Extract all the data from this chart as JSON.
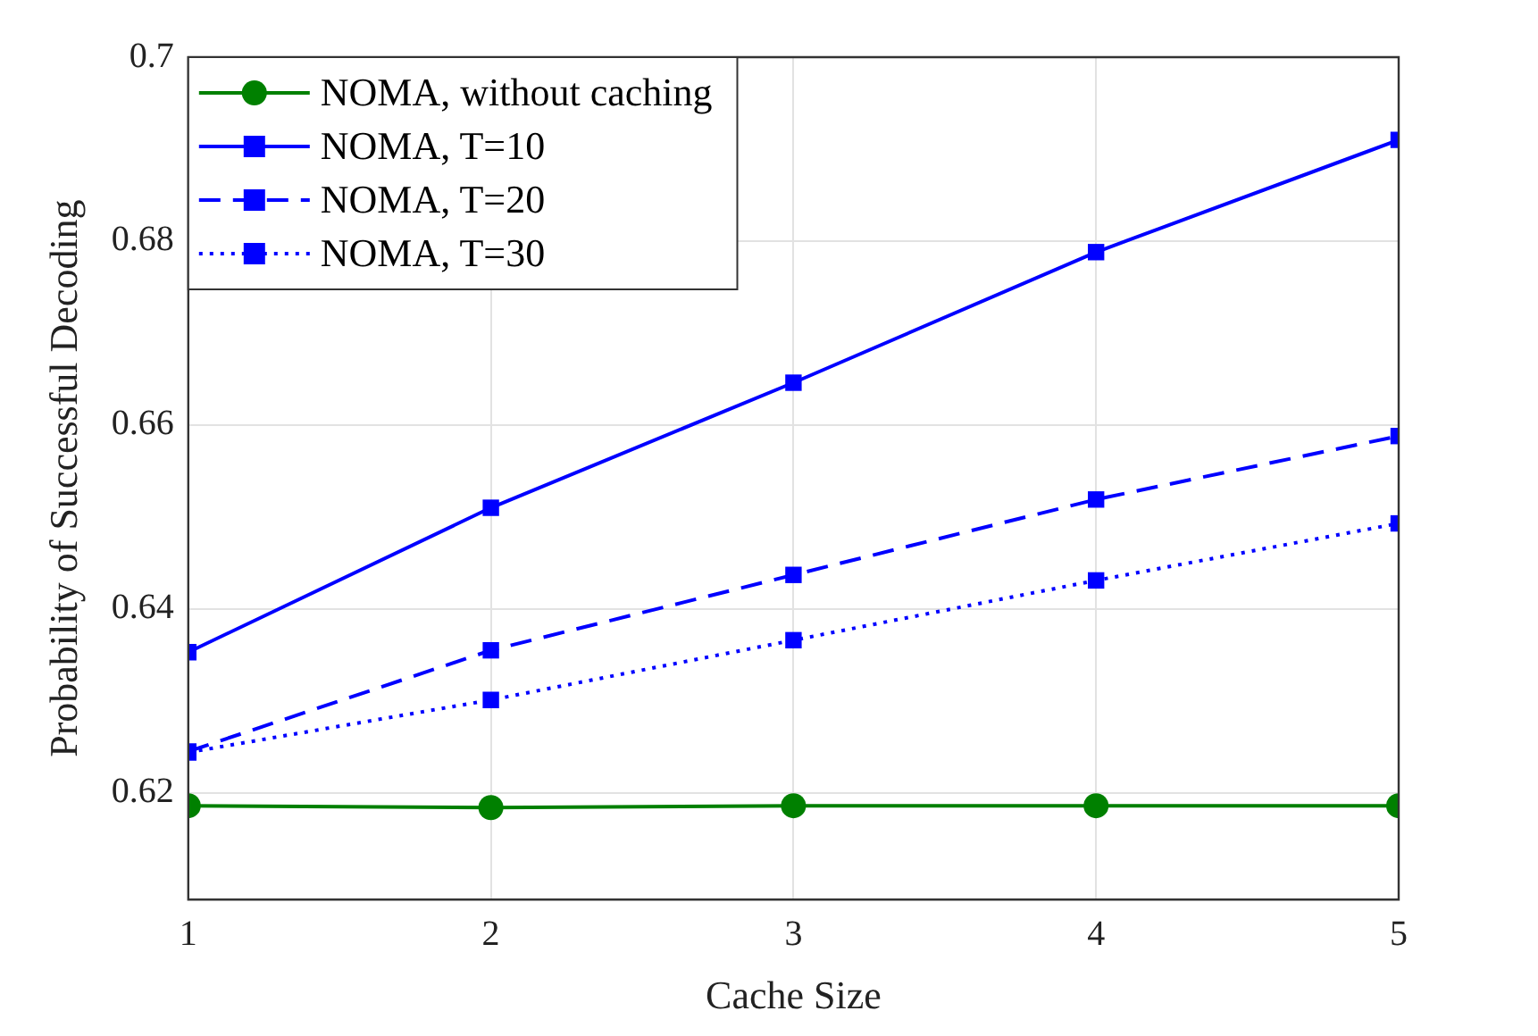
{
  "chart_data": {
    "type": "line",
    "xlabel": "Cache Size",
    "ylabel": "Probability of Successful Decoding",
    "x": [
      1,
      2,
      3,
      4,
      5
    ],
    "series": [
      {
        "name": "NOMA, without caching",
        "color": "#008000",
        "marker": "circle",
        "line_style": "solid",
        "values": [
          0.6186,
          0.6184,
          0.6186,
          0.6186,
          0.6186
        ]
      },
      {
        "name": "NOMA, T=10",
        "color": "#0000ff",
        "marker": "square",
        "line_style": "solid",
        "values": [
          0.6353,
          0.651,
          0.6646,
          0.6788,
          0.691
        ]
      },
      {
        "name": "NOMA, T=20",
        "color": "#0000ff",
        "marker": "square",
        "line_style": "dashed",
        "values": [
          0.6245,
          0.6355,
          0.6437,
          0.6519,
          0.6588
        ]
      },
      {
        "name": "NOMA, T=30",
        "color": "#0000ff",
        "marker": "square",
        "line_style": "dotted",
        "values": [
          0.6244,
          0.6301,
          0.6366,
          0.6431,
          0.6493
        ]
      }
    ],
    "xlim": [
      1,
      5
    ],
    "xticks": [
      1,
      2,
      3,
      4,
      5
    ],
    "ylim": [
      0.6084,
      0.7
    ],
    "yticks": [
      0.62,
      0.64,
      0.66,
      0.68,
      0.7
    ],
    "grid": true,
    "legend": "top left"
  }
}
